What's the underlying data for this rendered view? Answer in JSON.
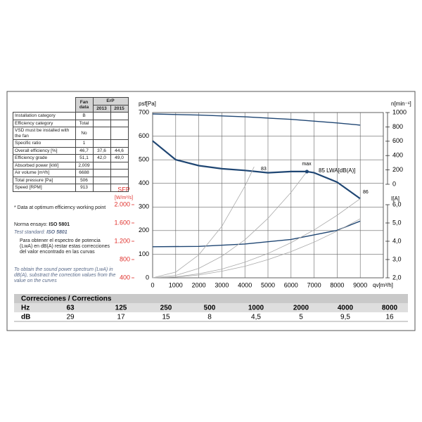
{
  "table": {
    "fan_header": "Fan data",
    "erp_header": "ErP",
    "years": [
      "2013",
      "2015"
    ],
    "rows": [
      [
        "Installation category",
        "B"
      ],
      [
        "Efficiency category",
        "Total"
      ],
      [
        "VSD must be installed with the fan",
        "No"
      ],
      [
        "Specific ratio",
        "1"
      ],
      [
        "Overall efficiency [%]",
        "46,7",
        "37,6",
        "44,6"
      ],
      [
        "Efficiency grade",
        "51,1",
        "42,0",
        "49,0"
      ],
      [
        "Absorbed power [kW]",
        "2,009"
      ],
      [
        "Air volume [m³/h]",
        "6688"
      ],
      [
        "Total pressure [Pa]",
        "506"
      ],
      [
        "Speed [RPM]",
        "913"
      ]
    ]
  },
  "notes": {
    "optimum": "* Data at optimum efficiency working point",
    "standard_es_label": "Norma ensayo:",
    "standard_es": "ISO 5801",
    "standard_en_label": "Test standard:",
    "standard_en": "ISO 5801",
    "spanish_text": "Para obtener el espectro de potencia (LwA) en dB(A) restar estas correcciones del valor encontrado en las curvas",
    "english_text": "To obtain the sound power spectrum (LwA) in dB(A), substract the correction values from the value on the curves"
  },
  "corrections": {
    "title": "Correcciones / Corrections",
    "hz_label": "Hz",
    "db_label": "dB",
    "hz": [
      "63",
      "125",
      "250",
      "500",
      "1000",
      "2000",
      "4000",
      "8000"
    ],
    "db": [
      "29",
      "17",
      "15",
      "8",
      "4,5",
      "5",
      "9,5",
      "16"
    ]
  },
  "chart_data": {
    "type": "line",
    "y_label": "psf[Pa]",
    "x_label": "qv[m³/h]",
    "xlim": [
      0,
      10000
    ],
    "xticks": [
      0,
      1000,
      2000,
      3000,
      4000,
      5000,
      6000,
      7000,
      8000,
      9000
    ],
    "ylim": [
      0,
      700
    ],
    "yticks": [
      0,
      100,
      200,
      300,
      400,
      500,
      600,
      700
    ],
    "grid": true,
    "rpm_axis": {
      "label": "n[min⁻¹]",
      "lim": [
        0,
        1000
      ],
      "ticks": [
        0,
        200,
        400,
        600,
        800,
        1000
      ]
    },
    "current_axis": {
      "label": "I[A]",
      "lim": [
        2,
        6
      ],
      "ticks": [
        {
          "value": 2,
          "label": "2,0"
        },
        {
          "value": 3,
          "label": "3,0"
        },
        {
          "value": 4,
          "label": "4,0"
        },
        {
          "value": 5,
          "label": "5,0"
        },
        {
          "value": 6,
          "label": "6,0"
        }
      ]
    },
    "sfp_axis": {
      "label": "SFP",
      "unit": "[W/m³/s]",
      "color": "#e0322d",
      "lim": [
        400,
        2000
      ],
      "ticks": [
        400,
        800,
        {
          "value": 1200,
          "label": "1.200"
        },
        {
          "value": 1600,
          "label": "1.600"
        },
        {
          "value": 2000,
          "label": "2.000"
        }
      ]
    },
    "series": [
      {
        "axis": "y",
        "color": "#1f4673",
        "width": 2.2,
        "x": [
          0,
          1000,
          2000,
          3000,
          4000,
          5000,
          6000,
          6688,
          7000,
          8000,
          9000
        ],
        "values": [
          580,
          500,
          475,
          462,
          455,
          445,
          450,
          450,
          445,
          405,
          335
        ]
      },
      {
        "axis": "rpm",
        "color": "#1f4673",
        "width": 1.4,
        "x": [
          0,
          2000,
          4000,
          6000,
          8000,
          9000
        ],
        "values": [
          980,
          965,
          940,
          905,
          855,
          825
        ]
      },
      {
        "axis": "current",
        "color": "#1f4673",
        "width": 1.4,
        "x": [
          0,
          2000,
          4000,
          6000,
          8000,
          9000
        ],
        "values": [
          3.7,
          3.72,
          3.85,
          4.1,
          4.6,
          5.1
        ]
      },
      {
        "axis": "y",
        "color": "#aaaaaa",
        "width": 0.8,
        "x": [
          0,
          1000,
          2000,
          3000,
          4000,
          4400
        ],
        "values": [
          0,
          24,
          97,
          218,
          388,
          470
        ]
      },
      {
        "axis": "y",
        "color": "#aaaaaa",
        "width": 0.8,
        "x": [
          0,
          1000,
          2000,
          3000,
          4000,
          5000,
          6000,
          6688
        ],
        "values": [
          0,
          10,
          40,
          91,
          161,
          252,
          362,
          450
        ]
      },
      {
        "axis": "y",
        "color": "#aaaaaa",
        "width": 0.8,
        "x": [
          0,
          1000,
          2000,
          3000,
          4000,
          5000,
          6000,
          7000,
          8000,
          9000
        ],
        "values": [
          0,
          4,
          17,
          37,
          66,
          103,
          149,
          203,
          265,
          335
        ]
      },
      {
        "axis": "y",
        "color": "#aaaaaa",
        "width": 0.8,
        "x": [
          0,
          1000,
          2000,
          3000,
          4000,
          5000,
          6000,
          7000,
          8000,
          9000
        ],
        "values": [
          0,
          3,
          12,
          28,
          49,
          77,
          111,
          151,
          198,
          250
        ]
      }
    ],
    "max_point": {
      "x": 6688,
      "value": 450,
      "color": "#1f4673"
    },
    "annotations": [
      "83",
      "max",
      "85 LWA[dB(A)]",
      "86"
    ]
  }
}
